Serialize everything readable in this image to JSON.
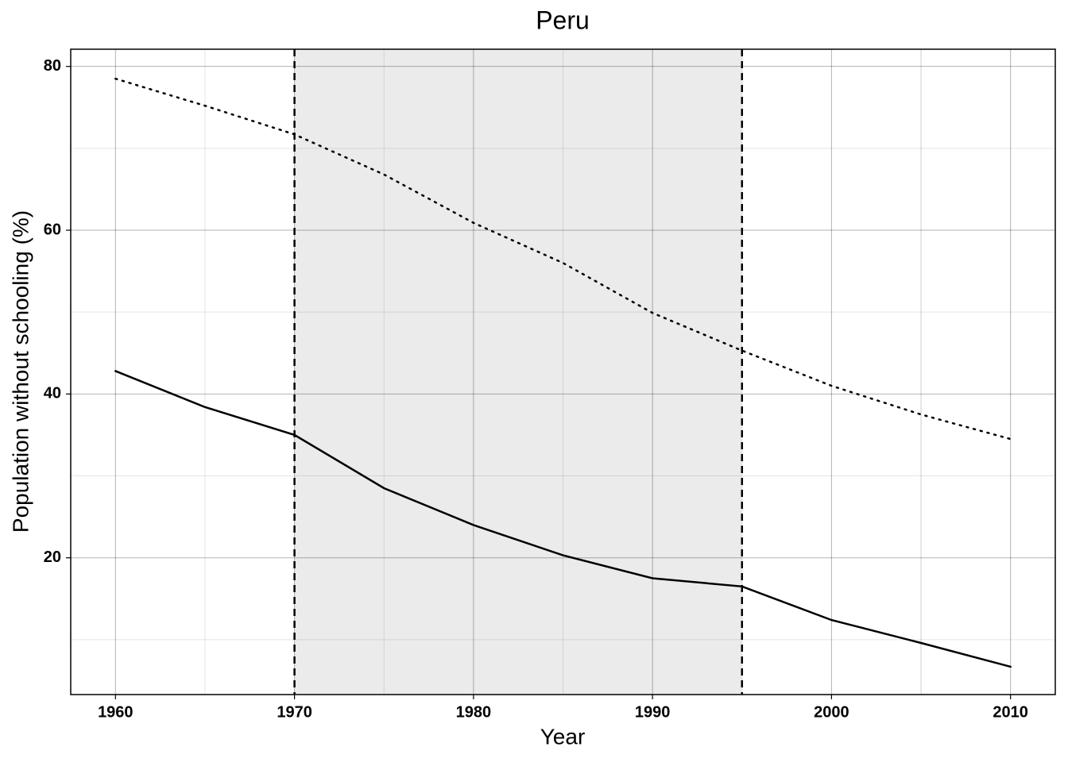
{
  "chart_data": {
    "type": "line",
    "title": "Peru",
    "x_label": "Year",
    "y_label": "Population without schooling (%)",
    "x": [
      1960,
      1965,
      1970,
      1975,
      1980,
      1985,
      1990,
      1995,
      2000,
      2005,
      2010
    ],
    "series": [
      {
        "color": "#000000",
        "line_style": "solid",
        "values": [
          42.8,
          38.4,
          35.0,
          28.5,
          24.0,
          20.3,
          17.5,
          16.5,
          12.4,
          9.6,
          6.7
        ]
      },
      {
        "color": "#000000",
        "line_style": "dotted",
        "values": [
          78.5,
          75.2,
          71.7,
          66.8,
          60.9,
          56.0,
          49.9,
          45.3,
          41.0,
          37.5,
          34.5
        ]
      }
    ],
    "xlim": [
      1957.5,
      2012.5
    ],
    "ylim": [
      3.3,
      82.1
    ],
    "xticks": [
      1960,
      1970,
      1980,
      1990,
      2000,
      2010
    ],
    "yticks": [
      20,
      40,
      60,
      80
    ],
    "grid": true,
    "minor_grid": true,
    "shaded_region": [
      1970,
      1995
    ],
    "shade_color": "#ebebeb"
  }
}
